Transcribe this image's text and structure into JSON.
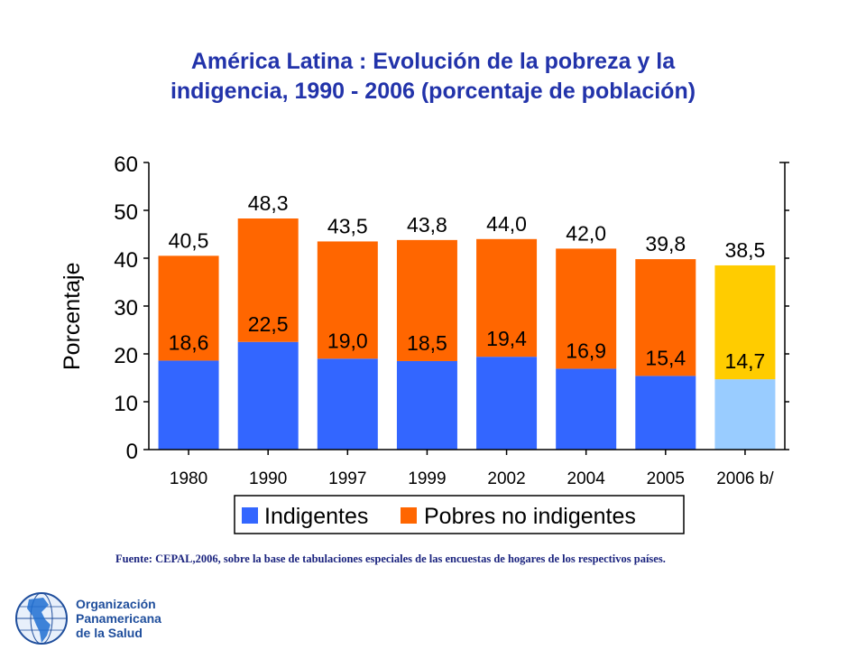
{
  "title": {
    "line1": "América Latina : Evolución de la pobreza  y la",
    "line2": "indigencia, 1990 - 2006 (porcentaje de población)"
  },
  "chart_data": {
    "type": "bar",
    "stacked": true,
    "categories": [
      "1980",
      "1990",
      "1997",
      "1999",
      "2002",
      "2004",
      "2005",
      "2006 b/"
    ],
    "series": [
      {
        "name": "Indigentes",
        "values": [
          18.6,
          22.5,
          19.0,
          18.5,
          19.4,
          16.9,
          15.4,
          14.7
        ]
      },
      {
        "name": "Pobres no indigentes",
        "values": [
          21.9,
          25.8,
          24.5,
          25.3,
          24.6,
          25.1,
          24.4,
          23.8
        ]
      }
    ],
    "indigent_labels": [
      "18,6",
      "22,5",
      "19,0",
      "18,5",
      "19,4",
      "16,9",
      "15,4",
      "14,7"
    ],
    "total_labels": [
      "40,5",
      "48,3",
      "43,5",
      "43,8",
      "44,0",
      "42,0",
      "39,8",
      "38,5"
    ],
    "ylabel": "Porcentaje",
    "ylim": [
      0,
      60
    ],
    "yticks": [
      "0",
      "10",
      "20",
      "30",
      "40",
      "50",
      "60"
    ],
    "legend": [
      "Indigentes",
      "Pobres no indigentes"
    ],
    "legend_position": "bottom",
    "colors": {
      "indigentes": "#3366ff",
      "pobres": "#ff6600",
      "projected_indigentes": "#99ccff",
      "projected_pobres": "#ffcc00"
    }
  },
  "source": "Fuente: CEPAL,2006,  sobre la base de tabulaciones especiales de las encuestas de hogares de los respectivos países.",
  "logo": {
    "line1": "Organización",
    "line2": "Panamericana",
    "line3": "de la Salud"
  }
}
